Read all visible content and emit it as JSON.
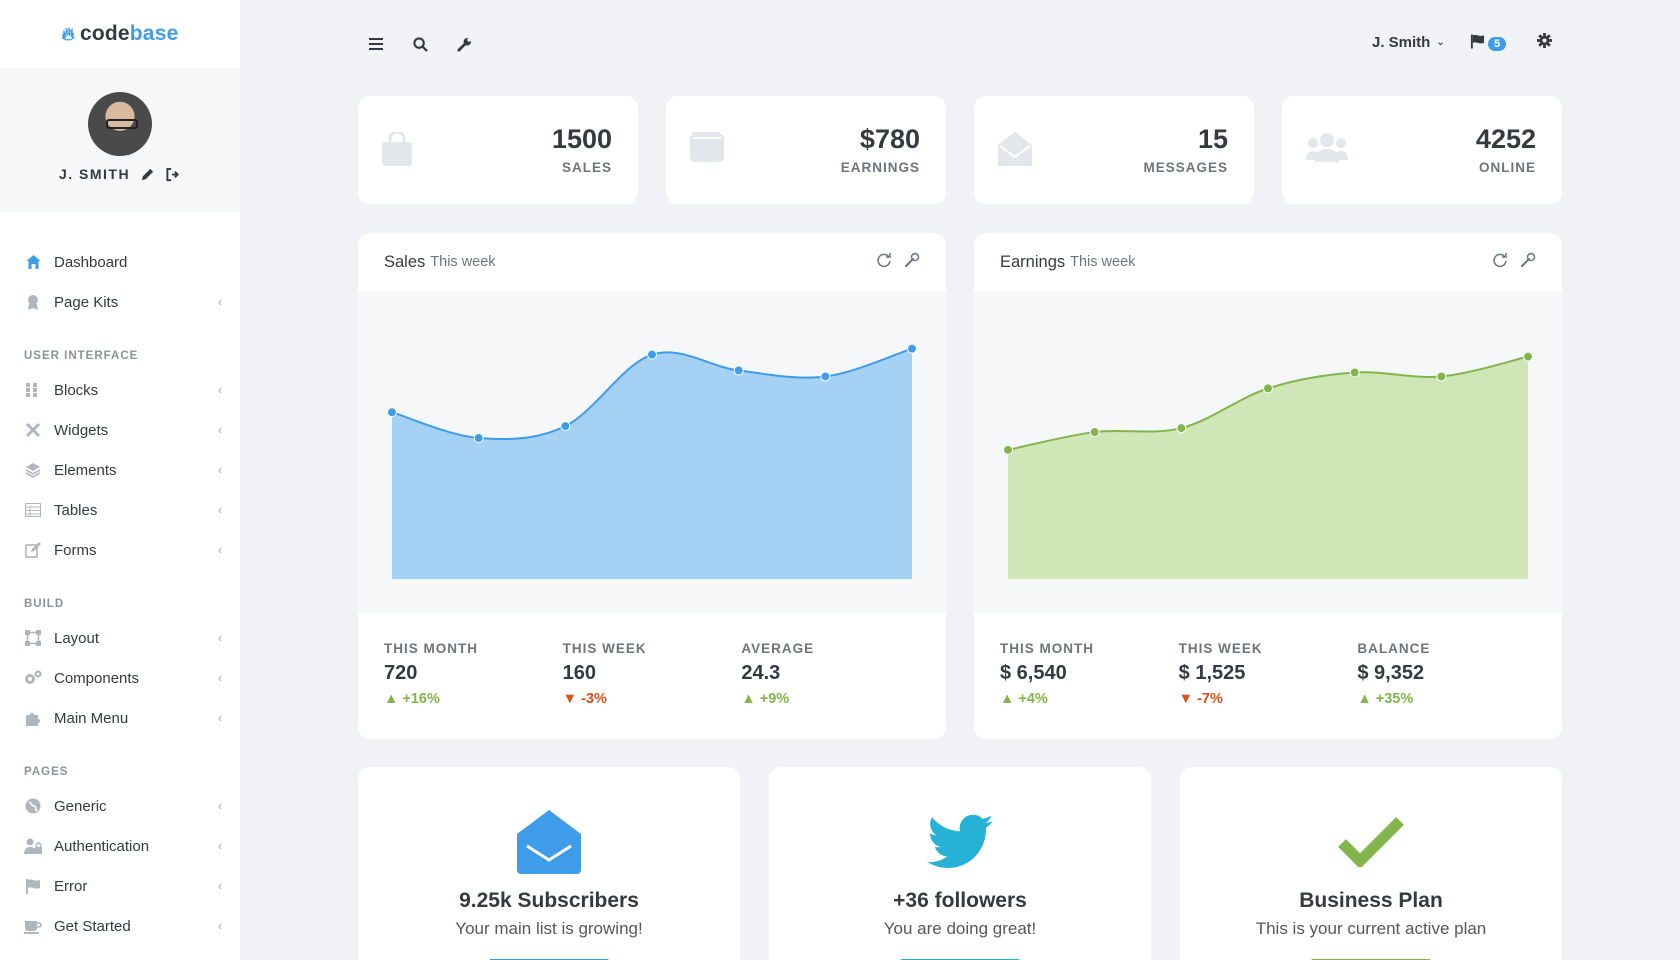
{
  "brand": {
    "part1": "codebase",
    "part1a": "code",
    "part1b": "base"
  },
  "profile": {
    "name": "J. SMITH"
  },
  "sidebar": {
    "items_top": [
      {
        "label": "Dashboard",
        "icon": "home-icon",
        "active": true
      },
      {
        "label": "Page Kits",
        "icon": "badge-icon"
      }
    ],
    "sections": [
      {
        "heading": "USER INTERFACE",
        "items": [
          "Blocks",
          "Widgets",
          "Elements",
          "Tables",
          "Forms"
        ]
      },
      {
        "heading": "BUILD",
        "items": [
          "Layout",
          "Components",
          "Main Menu"
        ]
      },
      {
        "heading": "PAGES",
        "items": [
          "Generic",
          "Authentication",
          "Error",
          "Get Started"
        ]
      }
    ]
  },
  "header": {
    "user": "J. Smith",
    "notifications": "5"
  },
  "tiles": [
    {
      "value": "1500",
      "label": "SALES",
      "icon": "shopping-bag-icon"
    },
    {
      "value": "$780",
      "label": "EARNINGS",
      "icon": "wallet-icon"
    },
    {
      "value": "15",
      "label": "MESSAGES",
      "icon": "envelope-open-icon"
    },
    {
      "value": "4252",
      "label": "ONLINE",
      "icon": "users-icon"
    }
  ],
  "cards": [
    {
      "title": "Sales",
      "subtitle": "This week",
      "stats": [
        {
          "label": "THIS MONTH",
          "value": "720",
          "delta": "+16%",
          "dir": "up"
        },
        {
          "label": "THIS WEEK",
          "value": "160",
          "delta": "-3%",
          "dir": "down"
        },
        {
          "label": "AVERAGE",
          "value": "24.3",
          "delta": "+9%",
          "dir": "up"
        }
      ]
    },
    {
      "title": "Earnings",
      "subtitle": "This week",
      "stats": [
        {
          "label": "THIS MONTH",
          "value": "$ 6,540",
          "delta": "+4%",
          "dir": "up"
        },
        {
          "label": "THIS WEEK",
          "value": "$ 1,525",
          "delta": "-7%",
          "dir": "down"
        },
        {
          "label": "BALANCE",
          "value": "$ 9,352",
          "delta": "+35%",
          "dir": "up"
        }
      ]
    }
  ],
  "chart_data": [
    {
      "type": "area",
      "title": "Sales",
      "color": "#3f9ce8",
      "fill": "#a5d1f5",
      "values": [
        34,
        21,
        27,
        63,
        55,
        52,
        66
      ],
      "ylim": [
        -50,
        90
      ]
    },
    {
      "type": "area",
      "title": "Earnings",
      "color": "#82b54b",
      "fill": "#cfe6b7",
      "values": [
        15,
        24,
        26,
        46,
        54,
        52,
        62
      ],
      "ylim": [
        -50,
        90
      ]
    }
  ],
  "bottom": [
    {
      "title": "9.25k Subscribers",
      "subtitle": "Your main list is growing!",
      "icon": "envelope-icon",
      "color": "#3f9ce8"
    },
    {
      "title": "+36 followers",
      "subtitle": "You are doing great!",
      "icon": "twitter-icon",
      "color": "#26b2d6"
    },
    {
      "title": "Business Plan",
      "subtitle": "This is your current active plan",
      "icon": "check-icon",
      "color": "#82b54b"
    }
  ],
  "colors": {
    "accent": "#3f9ce8",
    "success": "#82b54b",
    "danger": "#e04f1a"
  }
}
